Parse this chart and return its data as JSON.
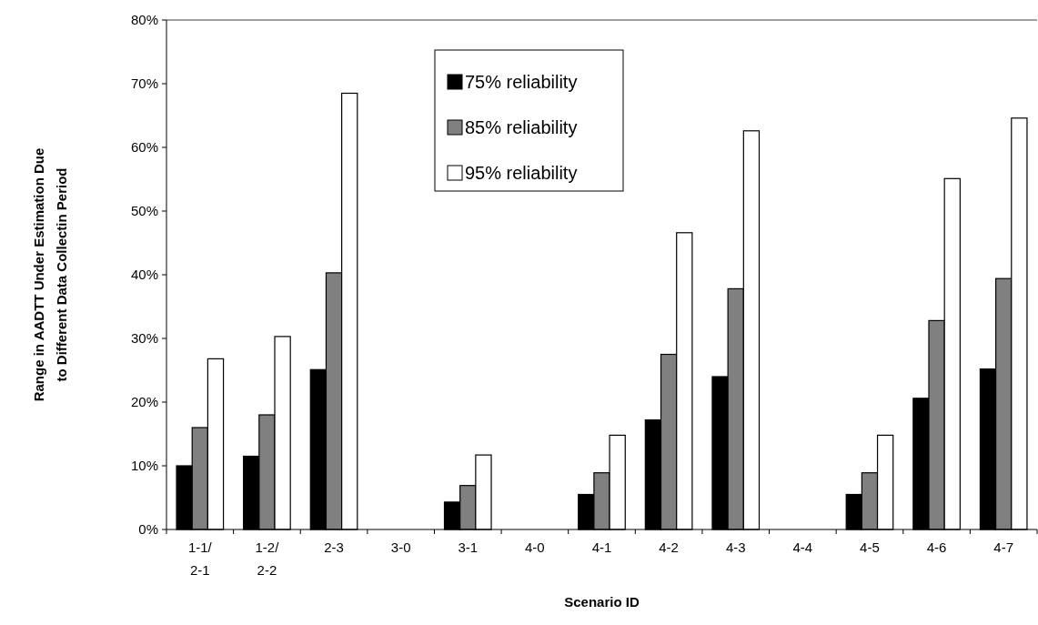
{
  "chart_data": {
    "type": "bar",
    "xlabel": "Scenario ID",
    "ylabel": "Range in AADTT Under Estimation Due to Different Data Collectin Period",
    "categories": [
      "1-1/2-1",
      "1-2/2-2",
      "2-3",
      "3-0",
      "3-1",
      "4-0",
      "4-1",
      "4-2",
      "4-3",
      "4-4",
      "4-5",
      "4-6",
      "4-7"
    ],
    "series": [
      {
        "name": "75% reliability",
        "color": "#000000",
        "values": [
          10.0,
          11.5,
          25.1,
          0,
          4.3,
          0,
          5.5,
          17.2,
          24.0,
          0,
          5.5,
          20.6,
          25.2
        ]
      },
      {
        "name": "85% reliability",
        "color": "#808080",
        "values": [
          16.0,
          18.0,
          40.3,
          0,
          6.9,
          0,
          8.9,
          27.5,
          37.8,
          0,
          8.9,
          32.8,
          39.4
        ]
      },
      {
        "name": "95% reliability",
        "color": "#ffffff",
        "values": [
          26.8,
          30.3,
          68.5,
          0,
          11.7,
          0,
          14.8,
          46.6,
          62.6,
          0,
          14.8,
          55.1,
          64.6
        ]
      }
    ],
    "ylim": [
      0,
      80
    ],
    "yticks": [
      {
        "value": 0,
        "label": "0%"
      },
      {
        "value": 10,
        "label": "10%"
      },
      {
        "value": 20,
        "label": "20%"
      },
      {
        "value": 30,
        "label": "30%"
      },
      {
        "value": 40,
        "label": "40%"
      },
      {
        "value": 50,
        "label": "50%"
      },
      {
        "value": 60,
        "label": "60%"
      },
      {
        "value": 70,
        "label": "70%"
      },
      {
        "value": 80,
        "label": "80%"
      }
    ],
    "grid": false,
    "legend": "top"
  }
}
